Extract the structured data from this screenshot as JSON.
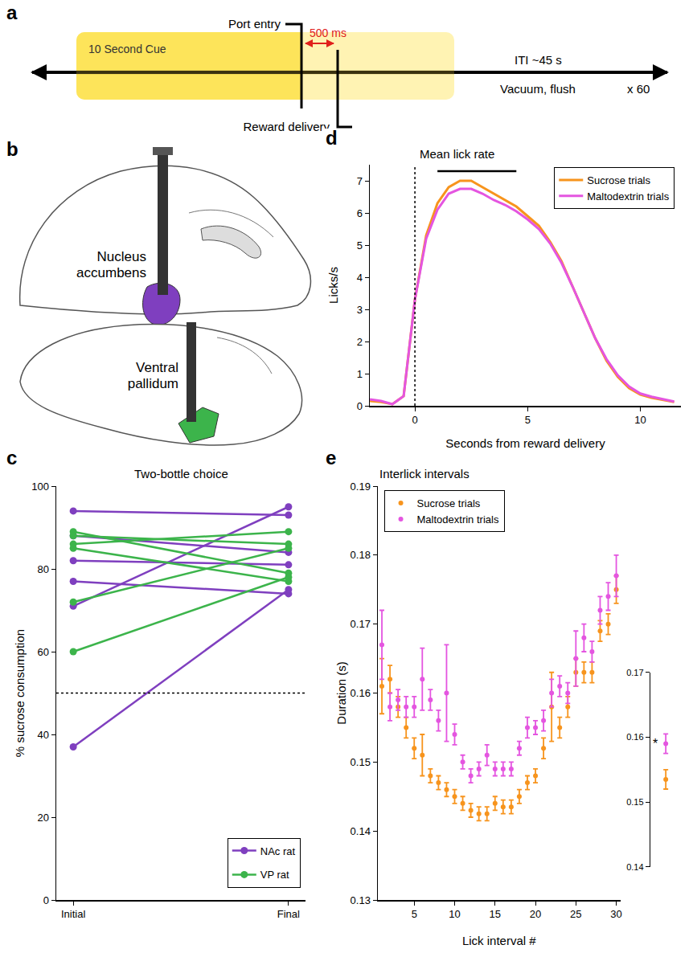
{
  "panel_a": {
    "letter": "a",
    "cue": "10 Second Cue",
    "port_entry": "Port entry",
    "delay": "500 ms",
    "reward": "Reward delivery",
    "iti": "ITI ~45 s",
    "iti_action": "Vacuum, flush",
    "repeats": "x 60"
  },
  "panel_b": {
    "letter": "b",
    "regions": [
      {
        "label": "Nucleus accumbens",
        "color": "#7f3fbf"
      },
      {
        "label": "Ventral pallidum",
        "color": "#3cb44b"
      }
    ]
  },
  "chart_data": [
    {
      "panel": "c",
      "type": "line",
      "title": "Two-bottle choice",
      "categories": [
        "Initial",
        "Final"
      ],
      "ylabel": "% sucrose consumption",
      "ylim": [
        0,
        100
      ],
      "yticks": [
        0,
        20,
        40,
        60,
        80,
        100
      ],
      "hline": 50,
      "legend": "bottom right",
      "marker": "circle",
      "series": [
        {
          "name": "NAc rat",
          "color": "#7f3fbf",
          "values": [
            [
              94,
              93
            ],
            [
              88,
              84
            ],
            [
              82,
              81
            ],
            [
              77,
              74
            ],
            [
              71,
              95
            ],
            [
              37,
              75
            ]
          ]
        },
        {
          "name": "VP rat",
          "color": "#3cb44b",
          "values": [
            [
              89,
              79
            ],
            [
              88,
              86
            ],
            [
              86,
              89
            ],
            [
              85,
              77
            ],
            [
              72,
              85
            ],
            [
              60,
              78
            ]
          ]
        }
      ]
    },
    {
      "panel": "d",
      "type": "line",
      "title": "Mean lick rate",
      "xlabel": "Seconds from reward delivery",
      "ylabel": "Licks/s",
      "x": [
        -2,
        -1.5,
        -1,
        -0.5,
        0,
        0.5,
        1,
        1.5,
        2,
        2.5,
        3,
        3.5,
        4,
        4.5,
        5,
        5.5,
        6,
        6.5,
        7,
        7.5,
        8,
        8.5,
        9,
        9.5,
        10,
        10.5,
        11,
        11.5
      ],
      "series": [
        {
          "name": "Sucrose trials",
          "color": "#f7941d",
          "values": [
            0.15,
            0.12,
            0.05,
            0.3,
            3.3,
            5.3,
            6.3,
            6.8,
            7.0,
            7.0,
            6.8,
            6.6,
            6.4,
            6.2,
            5.9,
            5.6,
            5.1,
            4.5,
            3.7,
            2.9,
            2.1,
            1.4,
            0.9,
            0.55,
            0.35,
            0.25,
            0.18,
            0.12
          ]
        },
        {
          "name": "Maltodextrin trials",
          "color": "#e455e0",
          "values": [
            0.2,
            0.15,
            0.05,
            0.3,
            3.3,
            5.2,
            6.1,
            6.6,
            6.75,
            6.75,
            6.6,
            6.4,
            6.25,
            6.05,
            5.8,
            5.5,
            5.05,
            4.45,
            3.7,
            2.9,
            2.1,
            1.45,
            0.95,
            0.6,
            0.38,
            0.28,
            0.2,
            0.13
          ]
        }
      ],
      "xlim": [
        -2,
        11.8
      ],
      "xticks": [
        0,
        5,
        10
      ],
      "ylim": [
        0,
        7.5
      ],
      "yticks": [
        0,
        1,
        2,
        3,
        4,
        5,
        6,
        7
      ],
      "vline": 0,
      "significance_bar": {
        "x": [
          1,
          4.5
        ],
        "y": 7.3
      },
      "legend": "top right"
    },
    {
      "panel": "e",
      "type": "scatter",
      "title": "Interlick intervals",
      "xlabel": "Lick interval #",
      "ylabel": "Duration (s)",
      "x": [
        1,
        2,
        3,
        4,
        5,
        6,
        7,
        8,
        9,
        10,
        11,
        12,
        13,
        14,
        15,
        16,
        17,
        18,
        19,
        20,
        21,
        22,
        23,
        24,
        25,
        26,
        27,
        28,
        29,
        30
      ],
      "series": [
        {
          "name": "Sucrose trials",
          "color": "#f7941d",
          "values": [
            0.161,
            0.162,
            0.158,
            0.155,
            0.152,
            0.151,
            0.148,
            0.147,
            0.146,
            0.145,
            0.144,
            0.143,
            0.1425,
            0.1425,
            0.144,
            0.1435,
            0.1435,
            0.145,
            0.147,
            0.148,
            0.152,
            0.158,
            0.155,
            0.158,
            0.163,
            0.163,
            0.163,
            0.169,
            0.17,
            0.175
          ],
          "errors": [
            0.004,
            0.002,
            0.0015,
            0.0015,
            0.0015,
            0.003,
            0.001,
            0.001,
            0.001,
            0.001,
            0.001,
            0.001,
            0.001,
            0.001,
            0.001,
            0.001,
            0.001,
            0.001,
            0.001,
            0.001,
            0.0015,
            0.005,
            0.0015,
            0.0015,
            0.002,
            0.0015,
            0.0015,
            0.0015,
            0.0015,
            0.002
          ]
        },
        {
          "name": "Maltodextrin trials",
          "color": "#e455e0",
          "values": [
            0.167,
            0.158,
            0.159,
            0.158,
            0.158,
            0.162,
            0.159,
            0.156,
            0.16,
            0.154,
            0.15,
            0.148,
            0.149,
            0.151,
            0.149,
            0.149,
            0.149,
            0.152,
            0.155,
            0.155,
            0.156,
            0.16,
            0.161,
            0.16,
            0.165,
            0.168,
            0.166,
            0.172,
            0.174,
            0.177
          ],
          "errors": [
            0.005,
            0.002,
            0.0015,
            0.0015,
            0.0015,
            0.0045,
            0.0015,
            0.0015,
            0.007,
            0.0015,
            0.001,
            0.001,
            0.001,
            0.0015,
            0.001,
            0.001,
            0.001,
            0.001,
            0.0015,
            0.001,
            0.0015,
            0.002,
            0.0015,
            0.0015,
            0.004,
            0.002,
            0.0015,
            0.002,
            0.002,
            0.003
          ]
        }
      ],
      "xlim": [
        0.5,
        30.5
      ],
      "xticks": [
        5,
        10,
        15,
        20,
        25,
        30
      ],
      "ylim": [
        0.13,
        0.19
      ],
      "yticks": [
        0.13,
        0.14,
        0.15,
        0.16,
        0.17,
        0.18,
        0.19
      ],
      "legend": "top left",
      "marker": "circle",
      "inset": {
        "x": [
          0
        ],
        "xlim": [
          -1,
          1
        ],
        "ylim": [
          0.14,
          0.17
        ],
        "yticks": [
          0.14,
          0.15,
          0.16,
          0.17
        ],
        "tick_labels": "y",
        "annotation": "*",
        "series": [
          {
            "name": "Sucrose trials",
            "values": [
              0.1535
            ],
            "errors": [
              0.0015
            ]
          },
          {
            "name": "Maltodextrin trials",
            "values": [
              0.159
            ],
            "errors": [
              0.0015
            ]
          }
        ]
      }
    }
  ]
}
